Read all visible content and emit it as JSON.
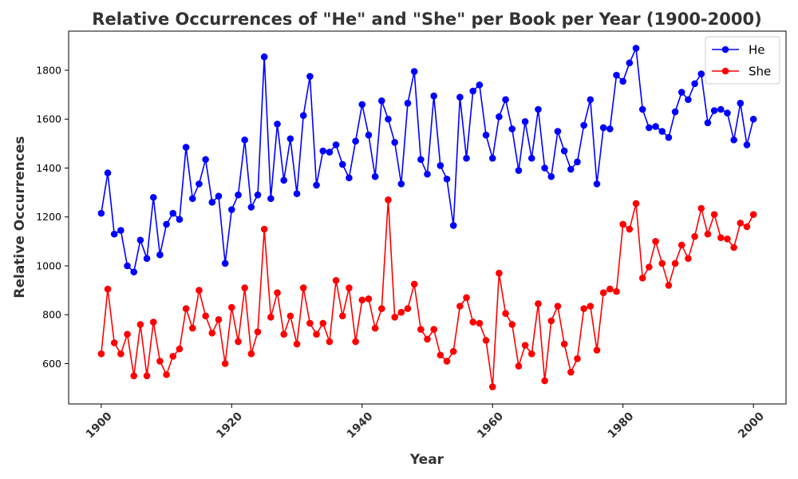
{
  "chart_data": {
    "type": "line",
    "title": "Relative Occurrences of \"He\" and \"She\" per Book per Year (1900-2000)",
    "xlabel": "Year",
    "ylabel": "Relative Occurrences",
    "xlim": [
      1895,
      2005
    ],
    "ylim": [
      435,
      1960
    ],
    "xticks": [
      "1900",
      "1920",
      "1940",
      "1960",
      "1980",
      "2000"
    ],
    "yticks": [
      "600",
      "800",
      "1000",
      "1200",
      "1400",
      "1600",
      "1800"
    ],
    "grid": false,
    "legend_position": "top-right",
    "x": [
      1900,
      1901,
      1902,
      1903,
      1904,
      1905,
      1906,
      1907,
      1908,
      1909,
      1910,
      1911,
      1912,
      1913,
      1914,
      1915,
      1916,
      1917,
      1918,
      1919,
      1920,
      1921,
      1922,
      1923,
      1924,
      1925,
      1926,
      1927,
      1928,
      1929,
      1930,
      1931,
      1932,
      1933,
      1934,
      1935,
      1936,
      1937,
      1938,
      1939,
      1940,
      1941,
      1942,
      1943,
      1944,
      1945,
      1946,
      1947,
      1948,
      1949,
      1950,
      1951,
      1952,
      1953,
      1954,
      1955,
      1956,
      1957,
      1958,
      1959,
      1960,
      1961,
      1962,
      1963,
      1964,
      1965,
      1966,
      1967,
      1968,
      1969,
      1970,
      1971,
      1972,
      1973,
      1974,
      1975,
      1976,
      1977,
      1978,
      1979,
      1980,
      1981,
      1982,
      1983,
      1984,
      1985,
      1986,
      1987,
      1988,
      1989,
      1990,
      1991,
      1992,
      1993,
      1994,
      1995,
      1996,
      1997,
      1998,
      1999,
      2000
    ],
    "series": [
      {
        "name": "He",
        "color": "#0000ff",
        "values": [
          1215,
          1380,
          1130,
          1145,
          1000,
          975,
          1105,
          1030,
          1280,
          1045,
          1170,
          1215,
          1190,
          1485,
          1275,
          1335,
          1435,
          1260,
          1285,
          1010,
          1230,
          1290,
          1515,
          1240,
          1290,
          1855,
          1275,
          1580,
          1350,
          1520,
          1295,
          1615,
          1775,
          1330,
          1470,
          1465,
          1495,
          1415,
          1360,
          1510,
          1660,
          1535,
          1365,
          1675,
          1600,
          1505,
          1335,
          1665,
          1795,
          1435,
          1375,
          1695,
          1410,
          1355,
          1165,
          1690,
          1440,
          1715,
          1740,
          1535,
          1440,
          1610,
          1680,
          1560,
          1390,
          1590,
          1440,
          1640,
          1400,
          1365,
          1550,
          1470,
          1395,
          1425,
          1575,
          1680,
          1335,
          1565,
          1560,
          1780,
          1755,
          1830,
          1890,
          1640,
          1565,
          1570,
          1550,
          1525,
          1630,
          1710,
          1680,
          1745,
          1785,
          1585,
          1635,
          1640,
          1625,
          1515,
          1665,
          1495,
          1600
        ]
      },
      {
        "name": "She",
        "color": "#ff0000",
        "values": [
          640,
          905,
          685,
          640,
          720,
          550,
          760,
          550,
          770,
          610,
          555,
          630,
          660,
          825,
          745,
          900,
          795,
          725,
          780,
          600,
          830,
          690,
          910,
          640,
          730,
          1150,
          790,
          890,
          720,
          795,
          680,
          910,
          765,
          720,
          765,
          690,
          940,
          795,
          910,
          690,
          860,
          865,
          745,
          825,
          1270,
          790,
          810,
          825,
          925,
          740,
          700,
          740,
          635,
          610,
          650,
          835,
          870,
          770,
          765,
          695,
          505,
          970,
          805,
          760,
          590,
          675,
          640,
          845,
          530,
          775,
          835,
          680,
          565,
          620,
          825,
          835,
          655,
          890,
          905,
          895,
          1170,
          1150,
          1255,
          950,
          995,
          1100,
          1010,
          920,
          1010,
          1085,
          1030,
          1120,
          1235,
          1130,
          1210,
          1115,
          1110,
          1075,
          1175,
          1160,
          1210
        ]
      }
    ]
  }
}
